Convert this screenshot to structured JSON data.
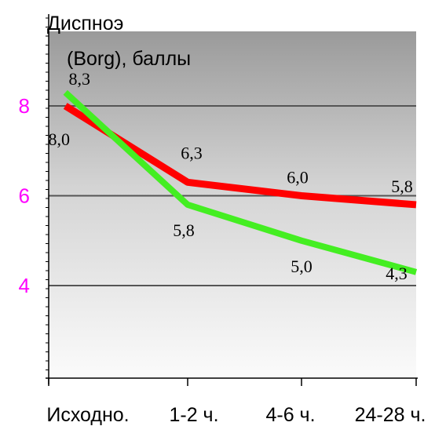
{
  "chart_data": {
    "type": "line",
    "ylabel_line1": "Диспноэ",
    "ylabel_line2": "(Borg), баллы",
    "categories": [
      "Исходно.",
      "1-2 ч.",
      "4-6 ч.",
      "24-28 ч."
    ],
    "y_ticks": [
      "8",
      "6",
      "4"
    ],
    "ylim": [
      2,
      10
    ],
    "grid": true,
    "series": [
      {
        "color": "#ff0000",
        "points": [
          [
            0.12,
            8.0
          ],
          [
            1.0,
            6.3
          ],
          [
            2.0,
            6.0
          ],
          [
            3.0,
            5.8
          ]
        ],
        "labels": [
          "8,0",
          "6,3",
          "6,0",
          "5,8"
        ]
      },
      {
        "color": "#44ee22",
        "points": [
          [
            0.12,
            8.3
          ],
          [
            1.0,
            5.8
          ],
          [
            2.0,
            5.0
          ],
          [
            3.0,
            4.3
          ]
        ],
        "labels": [
          "8,3",
          "5,8",
          "5,0",
          "4,3"
        ]
      }
    ],
    "tick_color": "#ff00ff"
  }
}
